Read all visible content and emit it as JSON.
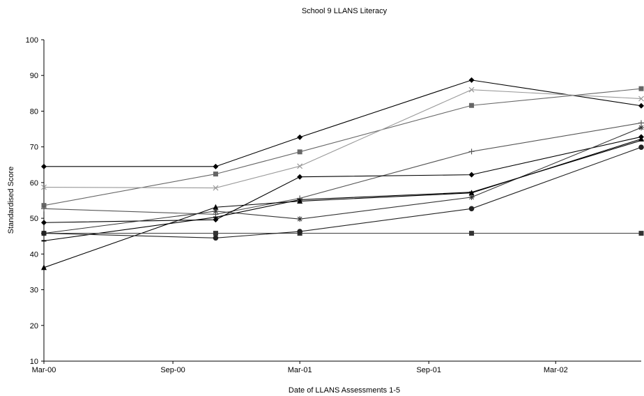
{
  "chart_data": {
    "type": "line",
    "title": "School 9  LLANS Literacy",
    "xlabel": "Date of LLANS Assessments 1-5",
    "ylabel": "Standardised Score",
    "ylim": [
      10,
      100
    ],
    "yticks": [
      10,
      20,
      30,
      40,
      50,
      60,
      70,
      80,
      90,
      100
    ],
    "xlim": [
      "2000-03-01",
      "2002-07-01"
    ],
    "xticks": [
      {
        "date": "2000-03-01",
        "label": "Mar-00"
      },
      {
        "date": "2000-09-01",
        "label": "Sep-00"
      },
      {
        "date": "2001-03-01",
        "label": "Mar-01"
      },
      {
        "date": "2001-09-01",
        "label": "Sep-01"
      },
      {
        "date": "2002-03-01",
        "label": "Mar-02"
      }
    ],
    "x": [
      "2000-03-01",
      "2000-11-01",
      "2001-03-01",
      "2001-11-01",
      "2002-07-01"
    ],
    "grid": false,
    "legend": "none",
    "series": [
      {
        "marker": "diamond",
        "color": "#000000",
        "values": [
          64.5,
          64.5,
          72.7,
          88.7,
          81.5
        ]
      },
      {
        "marker": "square",
        "color": "#666666",
        "values": [
          53.6,
          62.4,
          68.6,
          81.6,
          86.3
        ]
      },
      {
        "marker": "cross",
        "color": "#999999",
        "values": [
          58.7,
          58.5,
          64.6,
          86.0,
          83.5
        ]
      },
      {
        "marker": "plus",
        "color": "#555555",
        "values": [
          52.7,
          51.1,
          55.6,
          68.7,
          76.7
        ]
      },
      {
        "marker": "diamond",
        "color": "#000000",
        "values": [
          48.8,
          49.6,
          61.6,
          62.2,
          72.8
        ]
      },
      {
        "marker": "triangle",
        "color": "#000000",
        "values": [
          36.2,
          53.1,
          54.8,
          57.1,
          72.2
        ]
      },
      {
        "marker": "star",
        "color": "#333333",
        "values": [
          45.8,
          52.0,
          49.8,
          55.9,
          75.4
        ]
      },
      {
        "marker": "dash",
        "color": "#000000",
        "values": [
          43.7,
          50.3,
          55.2,
          57.3,
          71.8
        ]
      },
      {
        "marker": "square",
        "color": "#333333",
        "values": [
          45.8,
          45.8,
          45.8,
          45.8,
          45.8
        ]
      },
      {
        "marker": "circle",
        "color": "#222222",
        "values": [
          45.8,
          44.5,
          46.3,
          52.7,
          69.9
        ]
      }
    ]
  }
}
